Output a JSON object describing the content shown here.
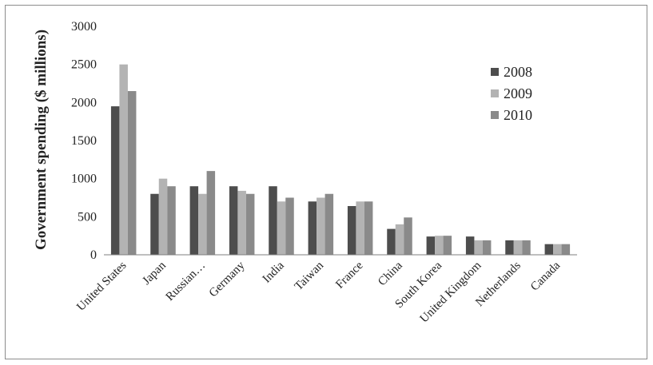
{
  "chart_data": {
    "type": "bar",
    "title": "",
    "xlabel": "",
    "ylabel": "Government spending ($ millions)",
    "ylim": [
      0,
      3000
    ],
    "yticks": [
      0,
      500,
      1000,
      1500,
      2000,
      2500,
      3000
    ],
    "grid": false,
    "legend_position": "top-right",
    "categories": [
      "United States",
      "Japan",
      "Russian…",
      "Germany",
      "India",
      "Taiwan",
      "France",
      "China",
      "South Korea",
      "United Kingdom",
      "Netherlands",
      "Canada"
    ],
    "series": [
      {
        "name": "2008",
        "color": "#4d4d4d",
        "values": [
          1950,
          800,
          900,
          900,
          900,
          700,
          640,
          340,
          240,
          240,
          190,
          140
        ]
      },
      {
        "name": "2009",
        "color": "#b3b3b3",
        "values": [
          2500,
          1000,
          800,
          840,
          700,
          750,
          700,
          400,
          250,
          190,
          190,
          140
        ]
      },
      {
        "name": "2010",
        "color": "#8a8a8a",
        "values": [
          2150,
          900,
          1100,
          800,
          750,
          800,
          700,
          490,
          250,
          190,
          190,
          140
        ]
      }
    ]
  }
}
